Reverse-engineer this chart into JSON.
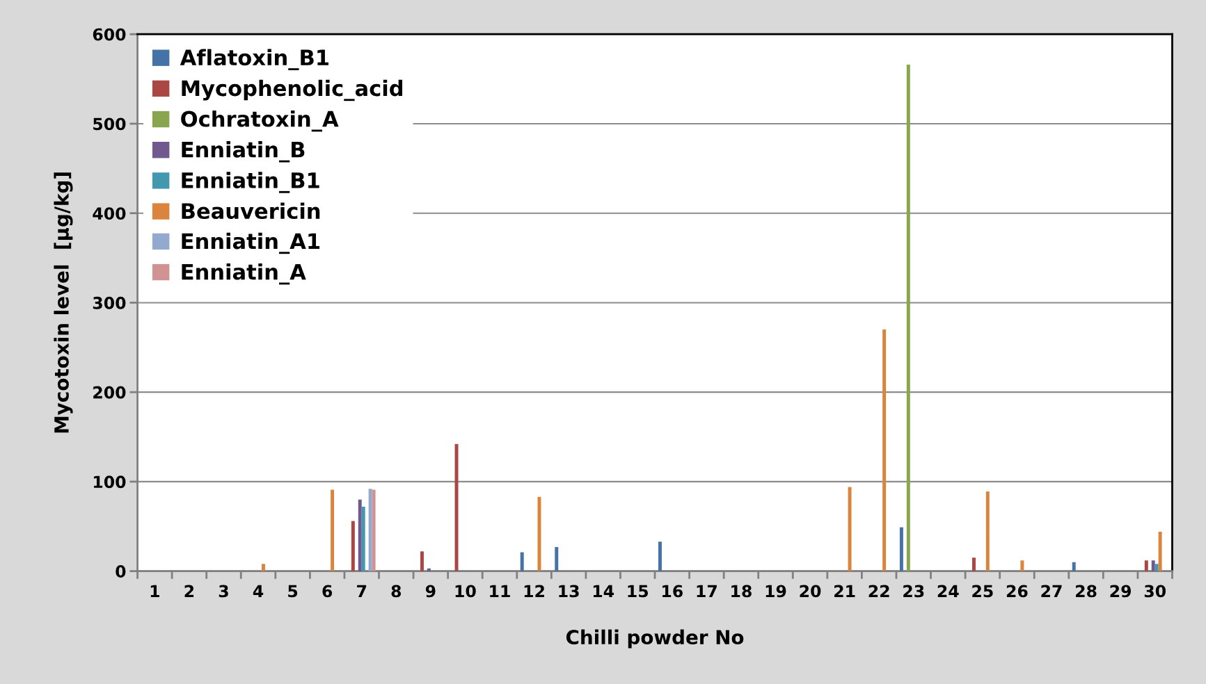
{
  "chart_data": {
    "type": "bar",
    "xlabel": "Chilli powder No",
    "ylabel": "Mycotoxin level  [µg/kg]",
    "categories": [
      "1",
      "2",
      "3",
      "4",
      "5",
      "6",
      "7",
      "8",
      "9",
      "10",
      "11",
      "12",
      "13",
      "14",
      "15",
      "16",
      "17",
      "18",
      "19",
      "20",
      "21",
      "22",
      "23",
      "24",
      "25",
      "26",
      "27",
      "28",
      "29",
      "30"
    ],
    "series": [
      {
        "name": "Aflatoxin_B1",
        "color": "#4572a7",
        "values": [
          0,
          0,
          0,
          0,
          0,
          0,
          0,
          0,
          0,
          0,
          0,
          21,
          27,
          0,
          0,
          33,
          0,
          0,
          0,
          0,
          0,
          0,
          49,
          0,
          0,
          0,
          0,
          10,
          0,
          0
        ]
      },
      {
        "name": "Mycophenolic_acid",
        "color": "#aa4643",
        "values": [
          0,
          0,
          0,
          0,
          0,
          0,
          56,
          0,
          22,
          142,
          0,
          0,
          0,
          0,
          0,
          0,
          0,
          0,
          0,
          0,
          0,
          0,
          0,
          0,
          15,
          0,
          0,
          0,
          0,
          12
        ]
      },
      {
        "name": "Ochratoxin_A",
        "color": "#89a54e",
        "values": [
          0,
          0,
          0,
          0,
          0,
          0,
          0,
          0,
          0,
          0,
          0,
          0,
          0,
          0,
          0,
          0,
          0,
          0,
          0,
          0,
          0,
          0,
          566,
          0,
          0,
          0,
          0,
          0,
          0,
          0
        ]
      },
      {
        "name": "Enniatin_B",
        "color": "#71588f",
        "values": [
          0,
          0,
          0,
          0,
          0,
          0,
          80,
          0,
          3,
          0,
          0,
          0,
          0,
          0,
          0,
          0,
          0,
          0,
          0,
          0,
          0,
          0,
          0,
          0,
          0,
          0,
          0,
          0,
          0,
          12
        ]
      },
      {
        "name": "Enniatin_B1",
        "color": "#4198af",
        "values": [
          0,
          0,
          0,
          0,
          0,
          0,
          72,
          0,
          0,
          0,
          0,
          0,
          0,
          0,
          0,
          0,
          0,
          0,
          0,
          0,
          0,
          0,
          0,
          0,
          0,
          0,
          0,
          0,
          0,
          8
        ]
      },
      {
        "name": "Beauvericin",
        "color": "#db843d",
        "values": [
          0,
          0,
          0,
          8,
          0,
          91,
          0,
          0,
          0,
          0,
          0,
          83,
          0,
          0,
          0,
          0,
          0,
          0,
          0,
          0,
          94,
          270,
          0,
          0,
          89,
          12,
          0,
          0,
          0,
          44
        ]
      },
      {
        "name": "Enniatin_A1",
        "color": "#93a9cf",
        "values": [
          0,
          0,
          0,
          0,
          0,
          0,
          92,
          0,
          0,
          0,
          0,
          0,
          0,
          0,
          0,
          0,
          0,
          0,
          0,
          0,
          0,
          0,
          0,
          0,
          0,
          0,
          0,
          0,
          0,
          0
        ]
      },
      {
        "name": "Enniatin_A",
        "color": "#d19392",
        "values": [
          0,
          0,
          0,
          0,
          0,
          0,
          91,
          0,
          0,
          0,
          0,
          0,
          0,
          0,
          0,
          0,
          0,
          0,
          0,
          0,
          0,
          0,
          0,
          0,
          0,
          0,
          0,
          0,
          0,
          0
        ]
      }
    ],
    "ylim": [
      0,
      600
    ],
    "yticks": [
      0,
      100,
      200,
      300,
      400,
      500,
      600
    ],
    "grid": "y",
    "legend": "top left"
  }
}
